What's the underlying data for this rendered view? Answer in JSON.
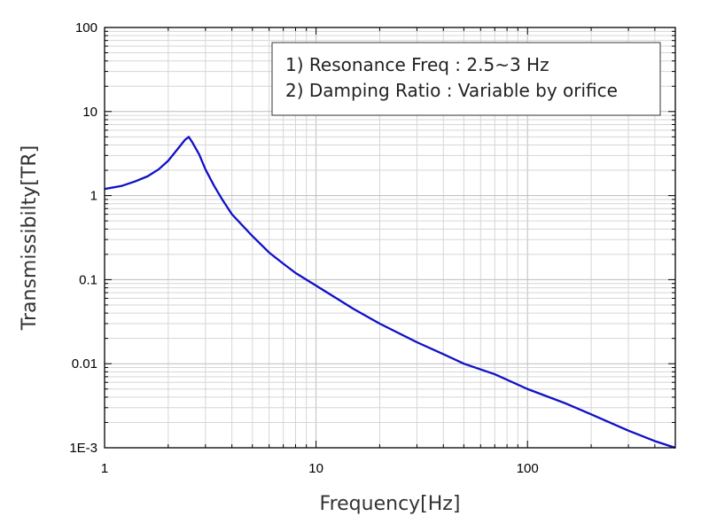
{
  "chart_data": {
    "type": "line",
    "title": "",
    "xlabel": "Frequency[Hz]",
    "ylabel": "Transmissibilty[TR]",
    "xscale": "log",
    "yscale": "log",
    "xlim": [
      1,
      500
    ],
    "ylim": [
      0.001,
      100
    ],
    "grid": true,
    "x_tick_labels": [
      {
        "value": 1,
        "label": "1"
      },
      {
        "value": 10,
        "label": "10"
      },
      {
        "value": 100,
        "label": "100"
      }
    ],
    "y_tick_labels": [
      {
        "value": 100,
        "label": "100"
      },
      {
        "value": 10,
        "label": "10"
      },
      {
        "value": 1,
        "label": "1"
      },
      {
        "value": 0.1,
        "label": "0.1"
      },
      {
        "value": 0.01,
        "label": "0.01"
      },
      {
        "value": 0.001,
        "label": "1E-3"
      }
    ],
    "annotation": {
      "lines": [
        "1) Resonance Freq : 2.5~3 Hz",
        "2) Damping Ratio : Variable by orifice"
      ],
      "placement": "top-right"
    },
    "series": [
      {
        "color": "#1010c8",
        "points": [
          [
            1.0,
            1.2
          ],
          [
            1.2,
            1.3
          ],
          [
            1.4,
            1.48
          ],
          [
            1.6,
            1.7
          ],
          [
            1.8,
            2.05
          ],
          [
            2.0,
            2.6
          ],
          [
            2.2,
            3.5
          ],
          [
            2.4,
            4.6
          ],
          [
            2.5,
            5.0
          ],
          [
            2.6,
            4.3
          ],
          [
            2.8,
            3.1
          ],
          [
            3.0,
            2.05
          ],
          [
            3.3,
            1.3
          ],
          [
            3.6,
            0.9
          ],
          [
            4.0,
            0.6
          ],
          [
            5.0,
            0.33
          ],
          [
            6.0,
            0.21
          ],
          [
            7.0,
            0.155
          ],
          [
            8.0,
            0.12
          ],
          [
            10.0,
            0.085
          ],
          [
            15.0,
            0.045
          ],
          [
            20.0,
            0.03
          ],
          [
            30.0,
            0.018
          ],
          [
            40.0,
            0.013
          ],
          [
            50.0,
            0.01
          ],
          [
            70.0,
            0.0075
          ],
          [
            100.0,
            0.005
          ],
          [
            150.0,
            0.0034
          ],
          [
            200.0,
            0.0025
          ],
          [
            300.0,
            0.0016
          ],
          [
            400.0,
            0.0012
          ],
          [
            500.0,
            0.001
          ]
        ]
      }
    ]
  }
}
